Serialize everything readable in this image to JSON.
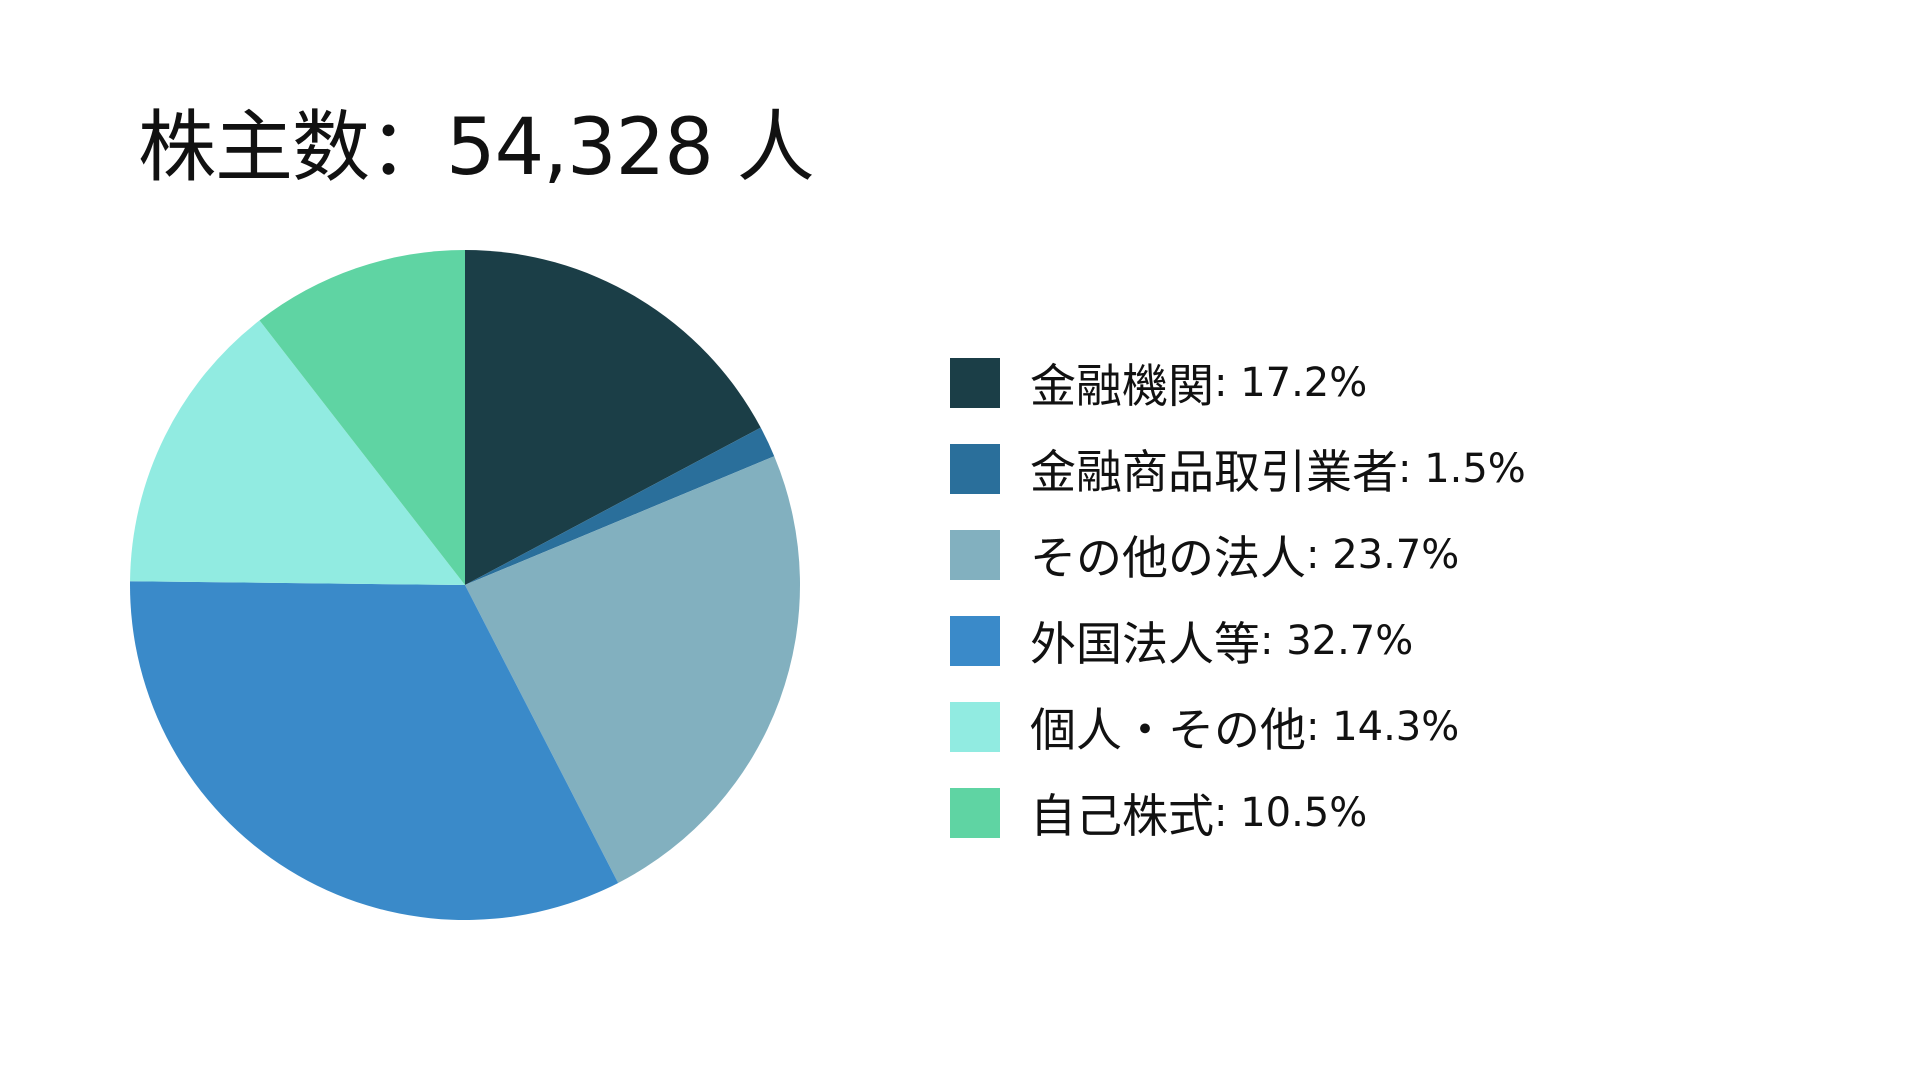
{
  "title": "株主数：54,328 人",
  "chart_data": {
    "type": "pie",
    "title": "株主数：54,328 人",
    "legend_position": "right",
    "series": [
      {
        "name": "金融機関",
        "value": 17.2,
        "label": " : 17.2%",
        "color": "#1b3e47"
      },
      {
        "name": "金融商品取引業者",
        "value": 1.5,
        "label": " : 1.5%",
        "color": "#2a6f9b"
      },
      {
        "name": "その他の法人",
        "value": 23.7,
        "label": " : 23.7%",
        "color": "#82b0bf"
      },
      {
        "name": "外国法人等",
        "value": 32.7,
        "label": " : 32.7%",
        "color": "#3a8ac9"
      },
      {
        "name": "個人・その他",
        "value": 14.3,
        "label": " : 14.3%",
        "color": "#91ebe1"
      },
      {
        "name": "自己株式",
        "value": 10.5,
        "label": " : 10.5%",
        "color": "#5fd4a3"
      }
    ]
  }
}
